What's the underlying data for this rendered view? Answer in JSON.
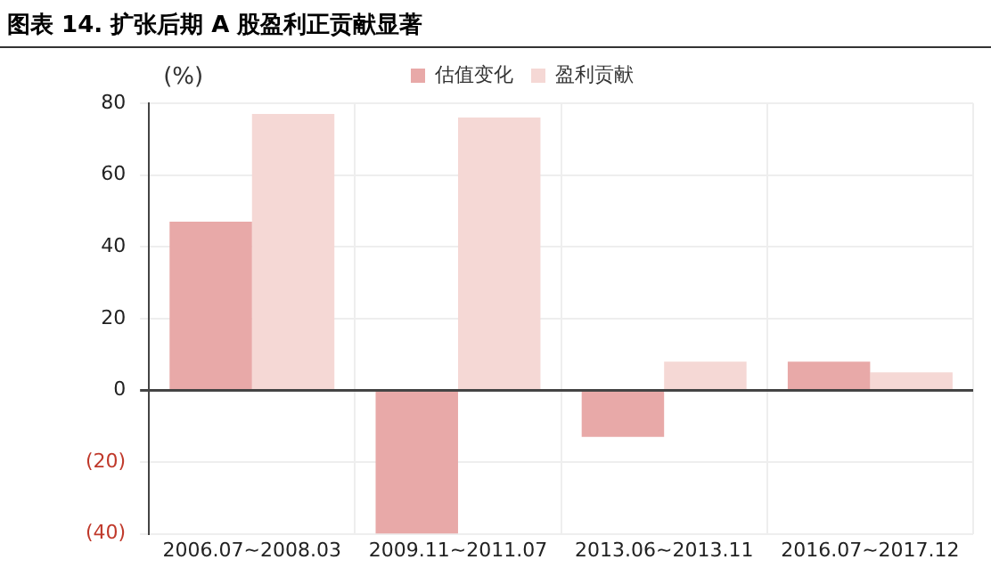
{
  "chart_data": {
    "type": "bar",
    "title": "图表 14. 扩张后期 A 股盈利正贡献显著",
    "ylabel": "(%)",
    "categories": [
      "2006.07~2008.03",
      "2009.11~2011.07",
      "2013.06~2013.11",
      "2016.07~2017.12"
    ],
    "series": [
      {
        "name": "估值变化",
        "color": "#e8a9a8",
        "values": [
          47,
          -40,
          -13,
          8
        ]
      },
      {
        "name": "盈利贡献",
        "color": "#f5d8d5",
        "values": [
          77,
          76,
          8,
          5
        ]
      }
    ],
    "ylim": [
      -40,
      80
    ],
    "yticks": [
      {
        "value": -40,
        "label": "(40)"
      },
      {
        "value": -20,
        "label": "(20)"
      },
      0,
      20,
      40,
      60,
      80
    ],
    "grid": true,
    "legend": "top"
  }
}
